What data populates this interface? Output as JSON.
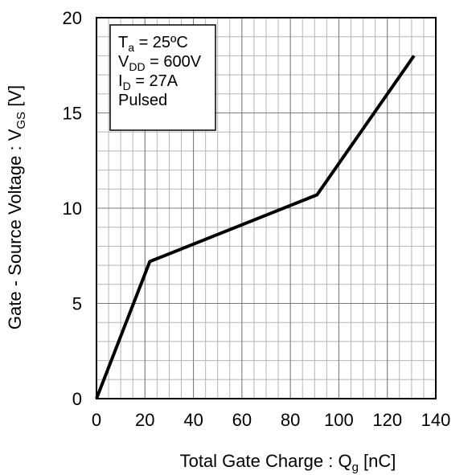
{
  "chart_data": {
    "type": "line",
    "xlabel": {
      "main": "Total Gate Charge : Q",
      "sub": "g",
      "unit": " [nC]"
    },
    "ylabel": {
      "main": "Gate - Source Voltage : V",
      "sub": "GS",
      "unit": " [V]"
    },
    "xlim": [
      0,
      140
    ],
    "ylim": [
      0,
      20
    ],
    "x_ticks": [
      0,
      20,
      40,
      60,
      80,
      100,
      120,
      140
    ],
    "y_ticks": [
      0,
      5,
      10,
      15,
      20
    ],
    "x_minor_step": 5,
    "y_minor_step": 1,
    "grid": true,
    "series": [
      {
        "color": "#000000",
        "x": [
          0,
          22,
          91,
          131
        ],
        "y": [
          0,
          7.2,
          10.7,
          18
        ]
      }
    ],
    "annotation": {
      "lines": [
        {
          "main": "T",
          "sub": "a",
          "rest": " = 25ºC"
        },
        {
          "main": "V",
          "sub": "DD",
          "rest": " = 600V"
        },
        {
          "main": "I",
          "sub": "D",
          "rest": " = 27A"
        },
        {
          "main": "Pulsed",
          "sub": "",
          "rest": ""
        }
      ]
    }
  }
}
